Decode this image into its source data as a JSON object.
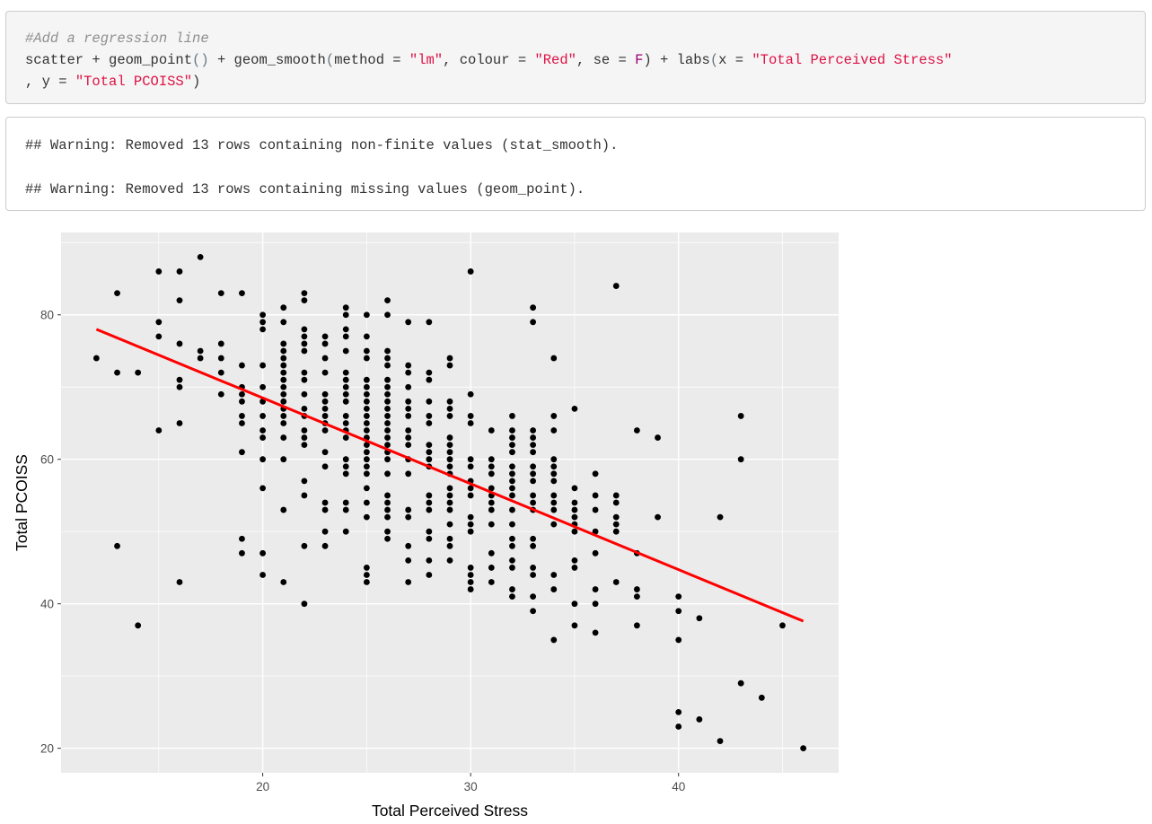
{
  "code": {
    "comment": "#Add a regression line",
    "line1": {
      "a": "scatter + geom_point",
      "b": "()",
      "c": " + geom_smooth",
      "d": "(",
      "e": "method = ",
      "f": "\"lm\"",
      "g": ", colour = ",
      "h": "\"Red\"",
      "i": ", se = ",
      "j": "F",
      "k": ") + labs",
      "l": "(",
      "m": "x = ",
      "n": "\"Total Perceived Stress\""
    },
    "line2": {
      "a": ", y = ",
      "b": "\"Total PCOISS\"",
      "c": ")"
    }
  },
  "output": {
    "warning1": "## Warning: Removed 13 rows containing non-finite values (stat_smooth).",
    "warning2": "## Warning: Removed 13 rows containing missing values (geom_point)."
  },
  "chart_data": {
    "type": "scatter",
    "xlabel": "Total Perceived Stress",
    "ylabel": "Total PCOISS",
    "xlim": [
      10.3,
      47.7
    ],
    "ylim": [
      16.6,
      91.4
    ],
    "xticks": [
      20,
      30,
      40
    ],
    "yticks": [
      20,
      40,
      60,
      80
    ],
    "colors": {
      "panel": "#ebebeb",
      "grid": "#ffffff",
      "points": "#000000",
      "line": "#ff0000"
    },
    "regression_line": {
      "x": [
        12,
        46
      ],
      "y": [
        78,
        37.6
      ]
    },
    "points": [
      [
        12,
        74
      ],
      [
        13,
        83
      ],
      [
        13,
        72
      ],
      [
        13,
        48
      ],
      [
        14,
        72
      ],
      [
        14,
        37
      ],
      [
        15,
        86
      ],
      [
        15,
        79
      ],
      [
        15,
        77
      ],
      [
        15,
        64
      ],
      [
        16,
        86
      ],
      [
        16,
        82
      ],
      [
        16,
        76
      ],
      [
        16,
        71
      ],
      [
        16,
        70
      ],
      [
        16,
        65
      ],
      [
        16,
        43
      ],
      [
        17,
        88
      ],
      [
        17,
        75
      ],
      [
        17,
        74
      ],
      [
        18,
        83
      ],
      [
        18,
        76
      ],
      [
        18,
        74
      ],
      [
        18,
        72
      ],
      [
        18,
        69
      ],
      [
        19,
        83
      ],
      [
        19,
        73
      ],
      [
        19,
        70
      ],
      [
        19,
        69
      ],
      [
        19,
        68
      ],
      [
        19,
        66
      ],
      [
        19,
        65
      ],
      [
        19,
        61
      ],
      [
        19,
        49
      ],
      [
        19,
        47
      ],
      [
        20,
        80
      ],
      [
        20,
        79
      ],
      [
        20,
        78
      ],
      [
        20,
        73
      ],
      [
        20,
        70
      ],
      [
        20,
        68
      ],
      [
        20,
        66
      ],
      [
        20,
        64
      ],
      [
        20,
        63
      ],
      [
        20,
        60
      ],
      [
        20,
        56
      ],
      [
        20,
        47
      ],
      [
        20,
        44
      ],
      [
        21,
        81
      ],
      [
        21,
        79
      ],
      [
        21,
        76
      ],
      [
        21,
        75
      ],
      [
        21,
        74
      ],
      [
        21,
        73
      ],
      [
        21,
        72
      ],
      [
        21,
        71
      ],
      [
        21,
        70
      ],
      [
        21,
        69
      ],
      [
        21,
        68
      ],
      [
        21,
        67
      ],
      [
        21,
        66
      ],
      [
        21,
        65
      ],
      [
        21,
        63
      ],
      [
        21,
        60
      ],
      [
        21,
        53
      ],
      [
        21,
        43
      ],
      [
        22,
        83
      ],
      [
        22,
        82
      ],
      [
        22,
        78
      ],
      [
        22,
        77
      ],
      [
        22,
        76
      ],
      [
        22,
        75
      ],
      [
        22,
        72
      ],
      [
        22,
        71
      ],
      [
        22,
        69
      ],
      [
        22,
        67
      ],
      [
        22,
        66
      ],
      [
        22,
        64
      ],
      [
        22,
        63
      ],
      [
        22,
        62
      ],
      [
        22,
        57
      ],
      [
        22,
        55
      ],
      [
        22,
        48
      ],
      [
        22,
        40
      ],
      [
        23,
        77
      ],
      [
        23,
        76
      ],
      [
        23,
        74
      ],
      [
        23,
        72
      ],
      [
        23,
        69
      ],
      [
        23,
        68
      ],
      [
        23,
        67
      ],
      [
        23,
        66
      ],
      [
        23,
        65
      ],
      [
        23,
        64
      ],
      [
        23,
        61
      ],
      [
        23,
        59
      ],
      [
        23,
        54
      ],
      [
        23,
        53
      ],
      [
        23,
        50
      ],
      [
        23,
        48
      ],
      [
        24,
        81
      ],
      [
        24,
        80
      ],
      [
        24,
        78
      ],
      [
        24,
        77
      ],
      [
        24,
        75
      ],
      [
        24,
        72
      ],
      [
        24,
        71
      ],
      [
        24,
        70
      ],
      [
        24,
        69
      ],
      [
        24,
        68
      ],
      [
        24,
        66
      ],
      [
        24,
        65
      ],
      [
        24,
        64
      ],
      [
        24,
        63
      ],
      [
        24,
        60
      ],
      [
        24,
        59
      ],
      [
        24,
        58
      ],
      [
        24,
        54
      ],
      [
        24,
        53
      ],
      [
        24,
        50
      ],
      [
        25,
        80
      ],
      [
        25,
        77
      ],
      [
        25,
        75
      ],
      [
        25,
        74
      ],
      [
        25,
        71
      ],
      [
        25,
        70
      ],
      [
        25,
        69
      ],
      [
        25,
        68
      ],
      [
        25,
        67
      ],
      [
        25,
        66
      ],
      [
        25,
        65
      ],
      [
        25,
        64
      ],
      [
        25,
        63
      ],
      [
        25,
        62
      ],
      [
        25,
        61
      ],
      [
        25,
        60
      ],
      [
        25,
        59
      ],
      [
        25,
        58
      ],
      [
        25,
        56
      ],
      [
        25,
        54
      ],
      [
        25,
        52
      ],
      [
        25,
        45
      ],
      [
        25,
        44
      ],
      [
        25,
        43
      ],
      [
        26,
        82
      ],
      [
        26,
        80
      ],
      [
        26,
        75
      ],
      [
        26,
        74
      ],
      [
        26,
        73
      ],
      [
        26,
        71
      ],
      [
        26,
        70
      ],
      [
        26,
        69
      ],
      [
        26,
        68
      ],
      [
        26,
        67
      ],
      [
        26,
        66
      ],
      [
        26,
        65
      ],
      [
        26,
        64
      ],
      [
        26,
        63
      ],
      [
        26,
        62
      ],
      [
        26,
        61
      ],
      [
        26,
        60
      ],
      [
        26,
        58
      ],
      [
        26,
        55
      ],
      [
        26,
        54
      ],
      [
        26,
        53
      ],
      [
        26,
        52
      ],
      [
        26,
        50
      ],
      [
        26,
        49
      ],
      [
        27,
        79
      ],
      [
        27,
        73
      ],
      [
        27,
        72
      ],
      [
        27,
        70
      ],
      [
        27,
        68
      ],
      [
        27,
        67
      ],
      [
        27,
        66
      ],
      [
        27,
        64
      ],
      [
        27,
        63
      ],
      [
        27,
        62
      ],
      [
        27,
        60
      ],
      [
        27,
        58
      ],
      [
        27,
        53
      ],
      [
        27,
        52
      ],
      [
        27,
        48
      ],
      [
        27,
        46
      ],
      [
        27,
        43
      ],
      [
        28,
        79
      ],
      [
        28,
        72
      ],
      [
        28,
        71
      ],
      [
        28,
        68
      ],
      [
        28,
        66
      ],
      [
        28,
        65
      ],
      [
        28,
        62
      ],
      [
        28,
        61
      ],
      [
        28,
        60
      ],
      [
        28,
        59
      ],
      [
        28,
        55
      ],
      [
        28,
        54
      ],
      [
        28,
        53
      ],
      [
        28,
        50
      ],
      [
        28,
        49
      ],
      [
        28,
        46
      ],
      [
        28,
        44
      ],
      [
        29,
        74
      ],
      [
        29,
        73
      ],
      [
        29,
        68
      ],
      [
        29,
        67
      ],
      [
        29,
        66
      ],
      [
        29,
        63
      ],
      [
        29,
        62
      ],
      [
        29,
        61
      ],
      [
        29,
        60
      ],
      [
        29,
        59
      ],
      [
        29,
        58
      ],
      [
        29,
        56
      ],
      [
        29,
        55
      ],
      [
        29,
        54
      ],
      [
        29,
        53
      ],
      [
        29,
        51
      ],
      [
        29,
        49
      ],
      [
        29,
        48
      ],
      [
        29,
        46
      ],
      [
        30,
        86
      ],
      [
        30,
        69
      ],
      [
        30,
        66
      ],
      [
        30,
        65
      ],
      [
        30,
        60
      ],
      [
        30,
        59
      ],
      [
        30,
        57
      ],
      [
        30,
        56
      ],
      [
        30,
        55
      ],
      [
        30,
        52
      ],
      [
        30,
        51
      ],
      [
        30,
        50
      ],
      [
        30,
        45
      ],
      [
        30,
        44
      ],
      [
        30,
        43
      ],
      [
        30,
        42
      ],
      [
        31,
        64
      ],
      [
        31,
        60
      ],
      [
        31,
        59
      ],
      [
        31,
        58
      ],
      [
        31,
        56
      ],
      [
        31,
        55
      ],
      [
        31,
        54
      ],
      [
        31,
        53
      ],
      [
        31,
        51
      ],
      [
        31,
        47
      ],
      [
        31,
        45
      ],
      [
        31,
        43
      ],
      [
        32,
        66
      ],
      [
        32,
        64
      ],
      [
        32,
        63
      ],
      [
        32,
        62
      ],
      [
        32,
        61
      ],
      [
        32,
        59
      ],
      [
        32,
        58
      ],
      [
        32,
        57
      ],
      [
        32,
        56
      ],
      [
        32,
        55
      ],
      [
        32,
        53
      ],
      [
        32,
        51
      ],
      [
        32,
        49
      ],
      [
        32,
        48
      ],
      [
        32,
        46
      ],
      [
        32,
        45
      ],
      [
        32,
        42
      ],
      [
        32,
        41
      ],
      [
        33,
        81
      ],
      [
        33,
        79
      ],
      [
        33,
        64
      ],
      [
        33,
        63
      ],
      [
        33,
        62
      ],
      [
        33,
        61
      ],
      [
        33,
        59
      ],
      [
        33,
        58
      ],
      [
        33,
        57
      ],
      [
        33,
        55
      ],
      [
        33,
        54
      ],
      [
        33,
        53
      ],
      [
        33,
        49
      ],
      [
        33,
        48
      ],
      [
        33,
        45
      ],
      [
        33,
        44
      ],
      [
        33,
        41
      ],
      [
        33,
        39
      ],
      [
        34,
        74
      ],
      [
        34,
        66
      ],
      [
        34,
        64
      ],
      [
        34,
        60
      ],
      [
        34,
        59
      ],
      [
        34,
        58
      ],
      [
        34,
        57
      ],
      [
        34,
        55
      ],
      [
        34,
        54
      ],
      [
        34,
        53
      ],
      [
        34,
        51
      ],
      [
        34,
        44
      ],
      [
        34,
        42
      ],
      [
        34,
        35
      ],
      [
        35,
        67
      ],
      [
        35,
        56
      ],
      [
        35,
        54
      ],
      [
        35,
        53
      ],
      [
        35,
        52
      ],
      [
        35,
        51
      ],
      [
        35,
        50
      ],
      [
        35,
        46
      ],
      [
        35,
        45
      ],
      [
        35,
        40
      ],
      [
        35,
        37
      ],
      [
        36,
        58
      ],
      [
        36,
        55
      ],
      [
        36,
        53
      ],
      [
        36,
        50
      ],
      [
        36,
        47
      ],
      [
        36,
        42
      ],
      [
        36,
        40
      ],
      [
        36,
        36
      ],
      [
        37,
        84
      ],
      [
        37,
        55
      ],
      [
        37,
        54
      ],
      [
        37,
        52
      ],
      [
        37,
        51
      ],
      [
        37,
        50
      ],
      [
        37,
        43
      ],
      [
        38,
        64
      ],
      [
        38,
        47
      ],
      [
        38,
        42
      ],
      [
        38,
        41
      ],
      [
        38,
        37
      ],
      [
        39,
        63
      ],
      [
        39,
        52
      ],
      [
        40,
        41
      ],
      [
        40,
        39
      ],
      [
        40,
        35
      ],
      [
        40,
        25
      ],
      [
        40,
        23
      ],
      [
        41,
        38
      ],
      [
        41,
        24
      ],
      [
        42,
        52
      ],
      [
        42,
        21
      ],
      [
        43,
        66
      ],
      [
        43,
        60
      ],
      [
        43,
        29
      ],
      [
        44,
        27
      ],
      [
        45,
        37
      ],
      [
        46,
        20
      ]
    ]
  }
}
